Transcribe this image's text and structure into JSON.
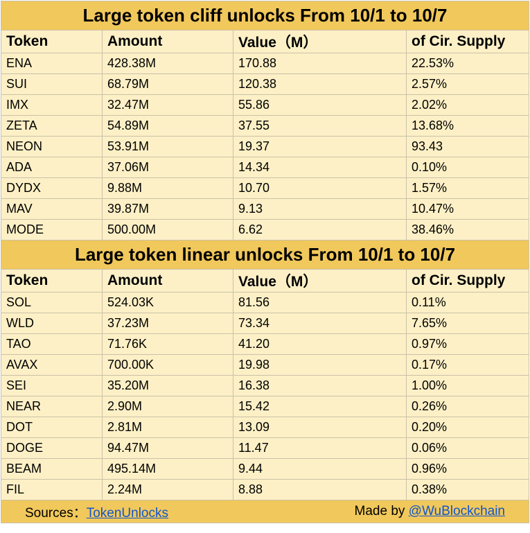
{
  "cliff": {
    "title": "Large token cliff unlocks From 10/1 to 10/7",
    "headers": [
      "Token",
      "Amount",
      "Value（M）",
      "of Cir. Supply"
    ],
    "rows": [
      [
        "ENA",
        "428.38M",
        "170.88",
        "22.53%"
      ],
      [
        "SUI",
        "68.79M",
        "120.38",
        "2.57%"
      ],
      [
        "IMX",
        "32.47M",
        "55.86",
        "2.02%"
      ],
      [
        "ZETA",
        "54.89M",
        "37.55",
        "13.68%"
      ],
      [
        "NEON",
        "53.91M",
        "19.37",
        "93.43"
      ],
      [
        "ADA",
        "37.06M",
        "14.34",
        "0.10%"
      ],
      [
        "DYDX",
        "9.88M",
        "10.70",
        "1.57%"
      ],
      [
        "MAV",
        "39.87M",
        "9.13",
        "10.47%"
      ],
      [
        "MODE",
        "500.00M",
        "6.62",
        "38.46%"
      ]
    ]
  },
  "linear": {
    "title": "Large token linear unlocks From 10/1 to 10/7",
    "headers": [
      "Token",
      "Amount",
      "Value（M）",
      "of Cir. Supply"
    ],
    "rows": [
      [
        "SOL",
        "524.03K",
        "81.56",
        "0.11%"
      ],
      [
        "WLD",
        "37.23M",
        "73.34",
        "7.65%"
      ],
      [
        "TAO",
        "71.76K",
        "41.20",
        "0.97%"
      ],
      [
        "AVAX",
        "700.00K",
        "19.98",
        "0.17%"
      ],
      [
        "SEI",
        "35.20M",
        "16.38",
        "1.00%"
      ],
      [
        "NEAR",
        "2.90M",
        "15.42",
        "0.26%"
      ],
      [
        "DOT",
        "2.81M",
        "13.09",
        "0.20%"
      ],
      [
        "DOGE",
        "94.47M",
        "11.47",
        "0.06%"
      ],
      [
        "BEAM",
        "495.14M",
        "9.44",
        "0.96%"
      ],
      [
        "FIL",
        "2.24M",
        "8.88",
        "0.38%"
      ]
    ]
  },
  "footer": {
    "sources_label": "Sources：",
    "sources_link": "TokenUnlocks",
    "made_by_label": "Made by ",
    "made_by_link": "@WuBlockchain"
  },
  "colors": {
    "title_bg": "#f1c85b",
    "row_bg": "#fdf0c6",
    "link": "#1155cc"
  }
}
